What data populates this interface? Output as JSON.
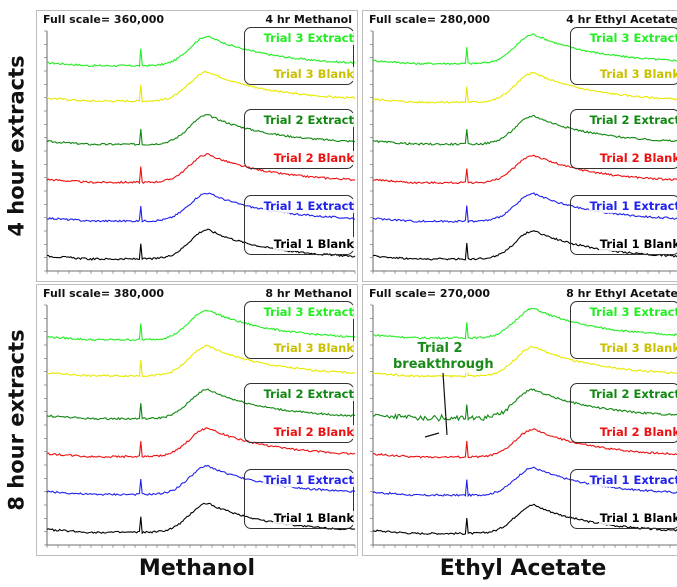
{
  "row_labels": [
    "4 hour extracts",
    "8 hour extracts"
  ],
  "column_labels": [
    "Methanol",
    "Ethyl Acetate"
  ],
  "colors": {
    "Trial 3 Extract": "#22ee22",
    "Trial 3 Blank": "#e8e800",
    "Trial 2 Extract": "#118811",
    "Trial 2 Blank": "#ee1111",
    "Trial 1 Extract": "#2222ee",
    "Trial 1 Blank": "#000000"
  },
  "chart_data": [
    {
      "type": "line",
      "title": "4 hr Methanol",
      "full_scale_label": "Full scale= 360,000",
      "x_range_min": [
        3.0,
        25.0
      ],
      "y_range": [
        0,
        360000
      ],
      "series": [
        {
          "name": "Trial 3 Extract",
          "baseline": 308000,
          "peak_height": 44000,
          "peak_x": 14.5
        },
        {
          "name": "Trial 3 Blank",
          "baseline": 255000,
          "peak_height": 44000,
          "peak_x": 14.5
        },
        {
          "name": "Trial 2 Extract",
          "baseline": 190000,
          "peak_height": 44000,
          "peak_x": 14.5
        },
        {
          "name": "Trial 2 Blank",
          "baseline": 133000,
          "peak_height": 42000,
          "peak_x": 14.5
        },
        {
          "name": "Trial 1 Extract",
          "baseline": 75000,
          "peak_height": 42000,
          "peak_x": 14.5
        },
        {
          "name": "Trial 1 Blank",
          "baseline": 18000,
          "peak_height": 44000,
          "peak_x": 14.5
        }
      ]
    },
    {
      "type": "line",
      "title": "4 hr Ethyl Acetate",
      "full_scale_label": "Full scale= 280,000",
      "x_range_min": [
        3.0,
        25.0
      ],
      "y_range": [
        0,
        280000
      ],
      "series": [
        {
          "name": "Trial 3 Extract",
          "baseline": 242000,
          "peak_height": 34000,
          "peak_x": 14.5
        },
        {
          "name": "Trial 3 Blank",
          "baseline": 197000,
          "peak_height": 34000,
          "peak_x": 14.5
        },
        {
          "name": "Trial 2 Extract",
          "baseline": 148000,
          "peak_height": 33000,
          "peak_x": 14.5
        },
        {
          "name": "Trial 2 Blank",
          "baseline": 103000,
          "peak_height": 32000,
          "peak_x": 14.5
        },
        {
          "name": "Trial 1 Extract",
          "baseline": 58000,
          "peak_height": 32000,
          "peak_x": 14.5
        },
        {
          "name": "Trial 1 Blank",
          "baseline": 14000,
          "peak_height": 33000,
          "peak_x": 14.5
        }
      ]
    },
    {
      "type": "line",
      "title": "8 hr Methanol",
      "full_scale_label": "Full scale= 380,000",
      "x_range_min": [
        3.0,
        25.0
      ],
      "y_range": [
        0,
        380000
      ],
      "series": [
        {
          "name": "Trial 3 Extract",
          "baseline": 325000,
          "peak_height": 47000,
          "peak_x": 14.5
        },
        {
          "name": "Trial 3 Blank",
          "baseline": 268000,
          "peak_height": 47000,
          "peak_x": 14.5
        },
        {
          "name": "Trial 2 Extract",
          "baseline": 200000,
          "peak_height": 46000,
          "peak_x": 14.5
        },
        {
          "name": "Trial 2 Blank",
          "baseline": 140000,
          "peak_height": 45000,
          "peak_x": 14.5
        },
        {
          "name": "Trial 1 Extract",
          "baseline": 80000,
          "peak_height": 45000,
          "peak_x": 14.5
        },
        {
          "name": "Trial 1 Blank",
          "baseline": 20000,
          "peak_height": 46000,
          "peak_x": 14.5
        }
      ]
    },
    {
      "type": "line",
      "title": "8 hr Ethyl Acetate",
      "full_scale_label": "Full scale= 270,000",
      "annotation": "Trial 2 breakthrough",
      "x_range_min": [
        3.0,
        25.0
      ],
      "y_range": [
        0,
        270000
      ],
      "series": [
        {
          "name": "Trial 3 Extract",
          "baseline": 233000,
          "peak_height": 33000,
          "peak_x": 14.5
        },
        {
          "name": "Trial 3 Blank",
          "baseline": 190000,
          "peak_height": 33000,
          "peak_x": 14.5
        },
        {
          "name": "Trial 2 Extract",
          "baseline": 143000,
          "peak_height": 32000,
          "peak_x": 14.5
        },
        {
          "name": "Trial 2 Blank",
          "baseline": 99000,
          "peak_height": 31000,
          "peak_x": 14.5
        },
        {
          "name": "Trial 1 Extract",
          "baseline": 56000,
          "peak_height": 31000,
          "peak_x": 14.5
        },
        {
          "name": "Trial 1 Blank",
          "baseline": 13000,
          "peak_height": 32000,
          "peak_x": 14.5
        }
      ]
    }
  ]
}
